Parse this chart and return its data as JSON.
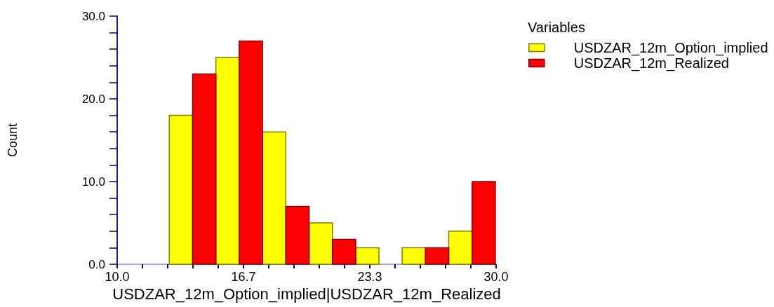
{
  "chart_data": {
    "type": "histogram",
    "xlabel": "USDZAR_12m_Option_implied|USDZAR_12m_Realized",
    "ylabel": "Count",
    "legend_title": "Variables",
    "bins": [
      12.75,
      15.21,
      17.67,
      20.13,
      22.59,
      25.04,
      27.5,
      29.96
    ],
    "series": [
      {
        "name": "USDZAR_12m_Option_implied",
        "color": "#ffff00",
        "values": [
          18,
          25,
          16,
          5,
          2,
          2,
          4
        ]
      },
      {
        "name": "USDZAR_12m_Realized",
        "color": "#ff0000",
        "values": [
          23,
          27,
          7,
          3,
          0,
          2,
          10
        ]
      }
    ],
    "xlim": [
      10,
      30
    ],
    "xticks": [
      {
        "value": 10,
        "label": "10.0"
      },
      {
        "value": 11.33,
        "label": null
      },
      {
        "value": 12.67,
        "label": null
      },
      {
        "value": 14,
        "label": null
      },
      {
        "value": 15.33,
        "label": null
      },
      {
        "value": 16.67,
        "label": "16.7"
      },
      {
        "value": 18,
        "label": null
      },
      {
        "value": 19.33,
        "label": null
      },
      {
        "value": 20.67,
        "label": null
      },
      {
        "value": 22,
        "label": null
      },
      {
        "value": 23.33,
        "label": "23.3"
      },
      {
        "value": 24.67,
        "label": null
      },
      {
        "value": 26,
        "label": null
      },
      {
        "value": 27.33,
        "label": null
      },
      {
        "value": 28.67,
        "label": null
      },
      {
        "value": 30,
        "label": "30.0"
      }
    ],
    "ylim": [
      0,
      30
    ],
    "yticks": [
      {
        "value": 0,
        "label": "0.0"
      },
      {
        "value": 2,
        "label": null
      },
      {
        "value": 4,
        "label": null
      },
      {
        "value": 6,
        "label": null
      },
      {
        "value": 8,
        "label": null
      },
      {
        "value": 10,
        "label": "10.0"
      },
      {
        "value": 12,
        "label": null
      },
      {
        "value": 14,
        "label": null
      },
      {
        "value": 16,
        "label": null
      },
      {
        "value": 18,
        "label": null
      },
      {
        "value": 20,
        "label": "20.0"
      },
      {
        "value": 22,
        "label": null
      },
      {
        "value": 24,
        "label": null
      },
      {
        "value": 26,
        "label": null
      },
      {
        "value": 28,
        "label": null
      },
      {
        "value": 30,
        "label": "30.0"
      }
    ],
    "grid": false,
    "legend": "top right"
  }
}
